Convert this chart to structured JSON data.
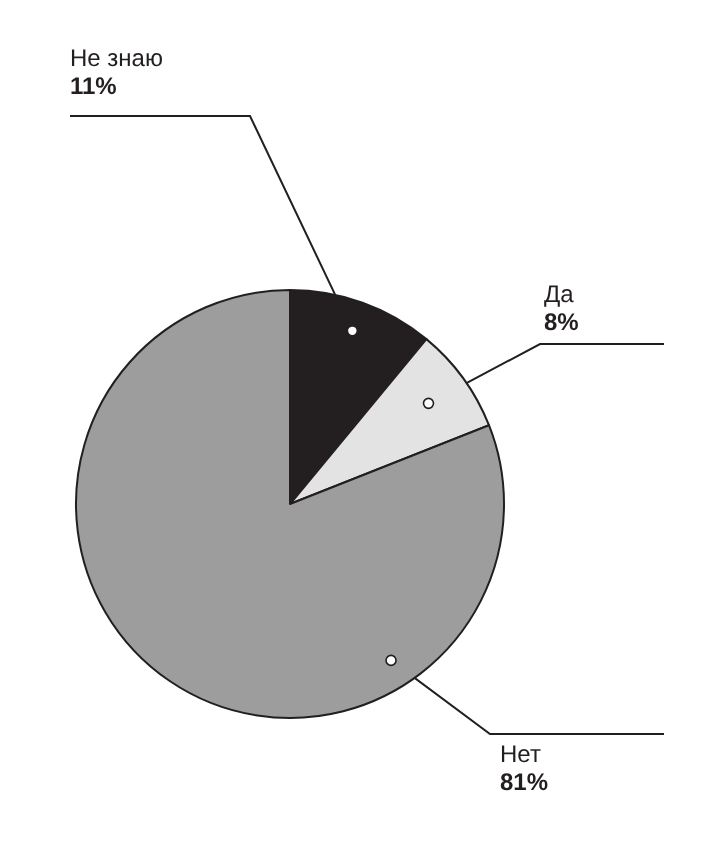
{
  "chart_data": {
    "type": "pie",
    "categories": [
      "Не знаю",
      "Да",
      "Нет"
    ],
    "values": [
      11,
      8,
      81
    ],
    "value_labels": [
      "11%",
      "8%",
      "81%"
    ],
    "colors": [
      "#231f20",
      "#e3e3e3",
      "#9d9d9d"
    ]
  }
}
